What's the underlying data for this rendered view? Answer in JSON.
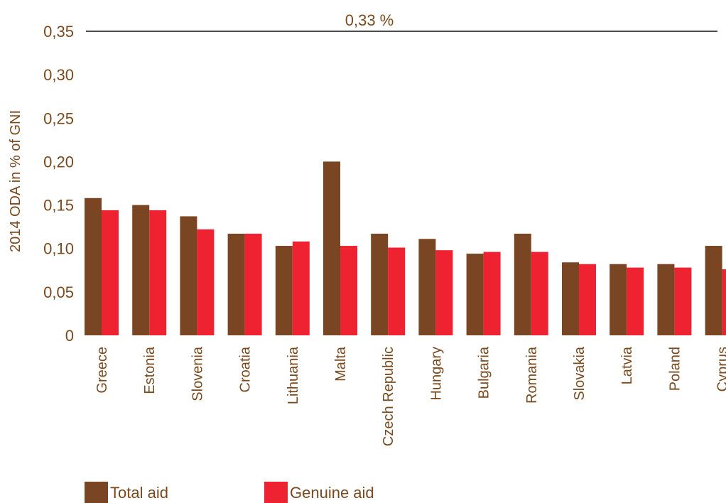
{
  "chart_data": {
    "type": "bar",
    "ylabel": "2014 ODA in % of GNI",
    "ylim": [
      0,
      0.35
    ],
    "yticks": [
      "0",
      "0,05",
      "0,10",
      "0,15",
      "0,20",
      "0,25",
      "0,30",
      "0,35"
    ],
    "ytick_values": [
      0,
      0.05,
      0.1,
      0.15,
      0.2,
      0.25,
      0.3,
      0.35
    ],
    "categories": [
      "Greece",
      "Estonia",
      "Slovenia",
      "Croatia",
      "Lithuania",
      "Malta",
      "Czech Republic",
      "Hungary",
      "Bulgaria",
      "Romania",
      "Slovakia",
      "Latvia",
      "Poland",
      "Cyprus"
    ],
    "series": [
      {
        "name": "Total aid",
        "color": "#7a4522",
        "values": [
          0.158,
          0.15,
          0.137,
          0.117,
          0.103,
          0.2,
          0.117,
          0.111,
          0.094,
          0.117,
          0.084,
          0.082,
          0.082,
          0.103
        ]
      },
      {
        "name": "Genuine aid",
        "color": "#ef2231",
        "values": [
          0.144,
          0.144,
          0.122,
          0.117,
          0.108,
          0.103,
          0.101,
          0.098,
          0.096,
          0.096,
          0.082,
          0.078,
          0.078,
          0.076
        ]
      }
    ],
    "reference_line": {
      "value": 0.35,
      "label": "0,33 %"
    },
    "legend_position": "bottom-left",
    "grid": false
  }
}
